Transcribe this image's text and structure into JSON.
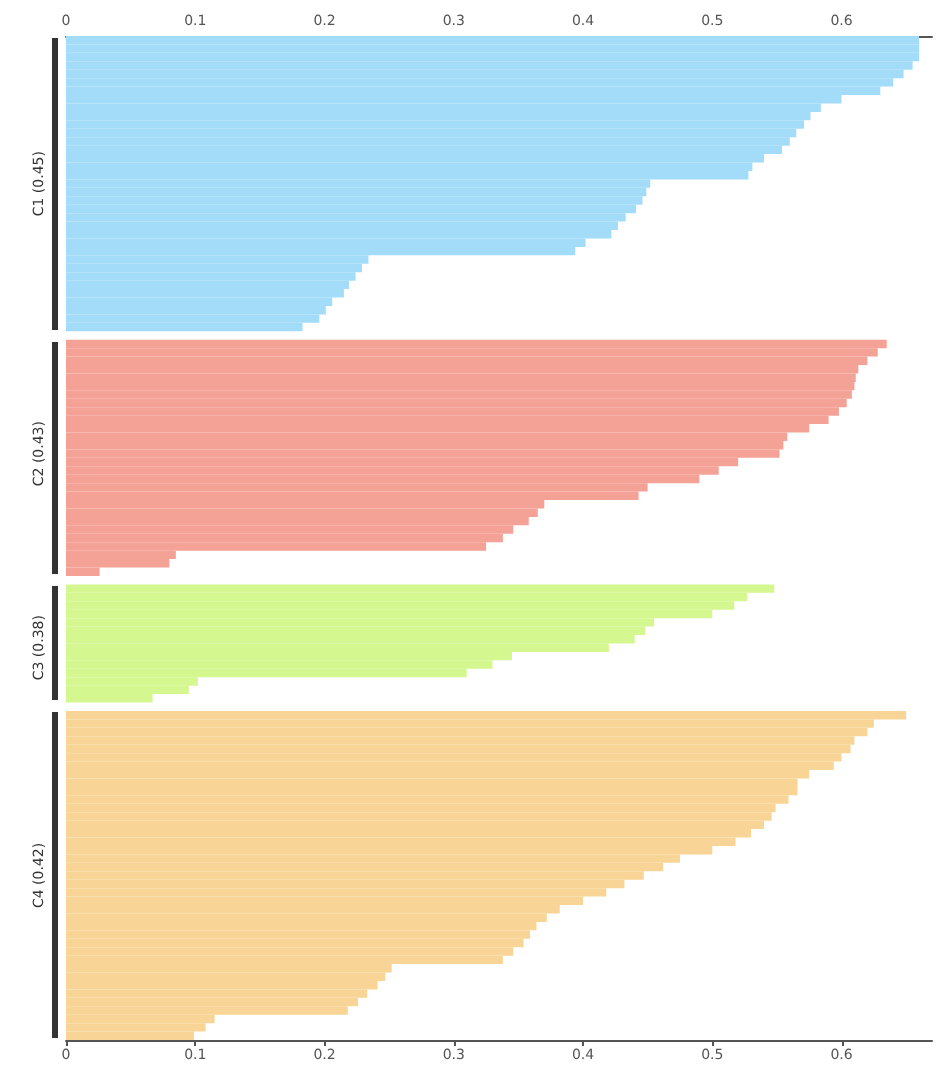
{
  "chart_data": {
    "type": "bar",
    "orientation": "horizontal",
    "categories": [
      null,
      null,
      null,
      null,
      null,
      null,
      null,
      null,
      null,
      null,
      null,
      null,
      null,
      null,
      null,
      null,
      null,
      "C1 (0.45)",
      null,
      null,
      null,
      null,
      null,
      null,
      null,
      null,
      null,
      null,
      null,
      null,
      null,
      null,
      null,
      null,
      null,
      null,
      null,
      null,
      null,
      null,
      null,
      null,
      null,
      null,
      null,
      null,
      null,
      null,
      null,
      "C2 (0.43)",
      null,
      null,
      null,
      null,
      null,
      null,
      null,
      null,
      null,
      null,
      null,
      null,
      null,
      null,
      null,
      null,
      null,
      null,
      null,
      null,
      null,
      null,
      "C3 (0.38)",
      null,
      null,
      null,
      null,
      null,
      null,
      null,
      null,
      null,
      null,
      null,
      null,
      null,
      null,
      null,
      null,
      null,
      null,
      null,
      null,
      null,
      null,
      null,
      null,
      null,
      null,
      "C4 (0.42)",
      null,
      null,
      null,
      null,
      null,
      null,
      null,
      null,
      null,
      null,
      null,
      null,
      null,
      null,
      null,
      null,
      null,
      null,
      null
    ],
    "values": [
      0.66,
      0.66,
      0.66,
      0.655,
      0.648,
      0.64,
      0.63,
      0.6,
      0.584,
      0.576,
      0.571,
      0.565,
      0.56,
      0.554,
      0.54,
      0.531,
      0.528,
      0.452,
      0.449,
      0.446,
      0.441,
      0.433,
      0.427,
      0.422,
      0.402,
      0.394,
      0.234,
      0.229,
      0.224,
      0.219,
      0.215,
      0.206,
      0.201,
      0.196,
      0.183,
      null,
      0.635,
      0.628,
      0.62,
      0.613,
      0.611,
      0.61,
      0.608,
      0.604,
      0.598,
      0.59,
      0.575,
      0.558,
      0.555,
      0.552,
      0.52,
      0.505,
      0.49,
      0.45,
      0.443,
      0.37,
      0.365,
      0.358,
      0.346,
      0.338,
      0.325,
      0.085,
      0.08,
      0.026,
      null,
      0.548,
      0.527,
      0.517,
      0.5,
      0.455,
      0.448,
      0.44,
      0.42,
      0.345,
      0.33,
      0.31,
      0.102,
      0.095,
      0.067,
      null,
      0.65,
      0.625,
      0.62,
      0.61,
      0.607,
      0.6,
      0.594,
      0.575,
      0.566,
      0.566,
      0.559,
      0.549,
      0.546,
      0.54,
      0.53,
      0.518,
      0.5,
      0.475,
      0.462,
      0.447,
      0.432,
      0.418,
      0.4,
      0.382,
      0.372,
      0.364,
      0.359,
      0.354,
      0.346,
      0.338,
      0.252,
      0.247,
      0.241,
      0.233,
      0.226,
      0.218,
      0.115,
      0.108,
      0.099
    ],
    "colors": [
      "#a3dcf8",
      "#a3dcf8",
      "#a3dcf8",
      "#a3dcf8",
      "#a3dcf8",
      "#a3dcf8",
      "#a3dcf8",
      "#a3dcf8",
      "#a3dcf8",
      "#a3dcf8",
      "#a3dcf8",
      "#a3dcf8",
      "#a3dcf8",
      "#a3dcf8",
      "#a3dcf8",
      "#a3dcf8",
      "#a3dcf8",
      "#a3dcf8",
      "#a3dcf8",
      "#a3dcf8",
      "#a3dcf8",
      "#a3dcf8",
      "#a3dcf8",
      "#a3dcf8",
      "#a3dcf8",
      "#a3dcf8",
      "#a3dcf8",
      "#a3dcf8",
      "#a3dcf8",
      "#a3dcf8",
      "#a3dcf8",
      "#a3dcf8",
      "#a3dcf8",
      "#a3dcf8",
      "#a3dcf8",
      "#ffffff",
      "#f4a196",
      "#f4a196",
      "#f4a196",
      "#f4a196",
      "#f4a196",
      "#f4a196",
      "#f4a196",
      "#f4a196",
      "#f4a196",
      "#f4a196",
      "#f4a196",
      "#f4a196",
      "#f4a196",
      "#f4a196",
      "#f4a196",
      "#f4a196",
      "#f4a196",
      "#f4a196",
      "#f4a196",
      "#f4a196",
      "#f4a196",
      "#f4a196",
      "#f4a196",
      "#f4a196",
      "#f4a196",
      "#f4a196",
      "#f4a196",
      "#f4a196",
      "#ffffff",
      "#d4f78f",
      "#d4f78f",
      "#d4f78f",
      "#d4f78f",
      "#d4f78f",
      "#d4f78f",
      "#d4f78f",
      "#d4f78f",
      "#d4f78f",
      "#d4f78f",
      "#d4f78f",
      "#d4f78f",
      "#d4f78f",
      "#d4f78f",
      "#ffffff",
      "#f8d596",
      "#f8d596",
      "#f8d596",
      "#f8d596",
      "#f8d596",
      "#f8d596",
      "#f8d596",
      "#f8d596",
      "#f8d596",
      "#f8d596",
      "#f8d596",
      "#f8d596",
      "#f8d596",
      "#f8d596",
      "#f8d596",
      "#f8d596",
      "#f8d596",
      "#f8d596",
      "#f8d596",
      "#f8d596",
      "#f8d596",
      "#f8d596",
      "#f8d596",
      "#f8d596",
      "#f8d596",
      "#f8d596",
      "#f8d596",
      "#f8d596",
      "#f8d596",
      "#f8d596",
      "#f8d596",
      "#f8d596",
      "#f8d596",
      "#f8d596",
      "#f8d596",
      "#f8d596",
      "#f8d596",
      "#f8d596",
      "#f8d596"
    ],
    "xlim": [
      0,
      0.67
    ],
    "xticks": [
      0,
      0.1,
      0.2,
      0.3,
      0.4,
      0.5,
      0.6
    ],
    "x2lim": [
      0,
      0.67
    ],
    "x2ticks": [
      0,
      0.1,
      0.2,
      0.3,
      0.4,
      0.5,
      0.6
    ],
    "grid": false
  }
}
